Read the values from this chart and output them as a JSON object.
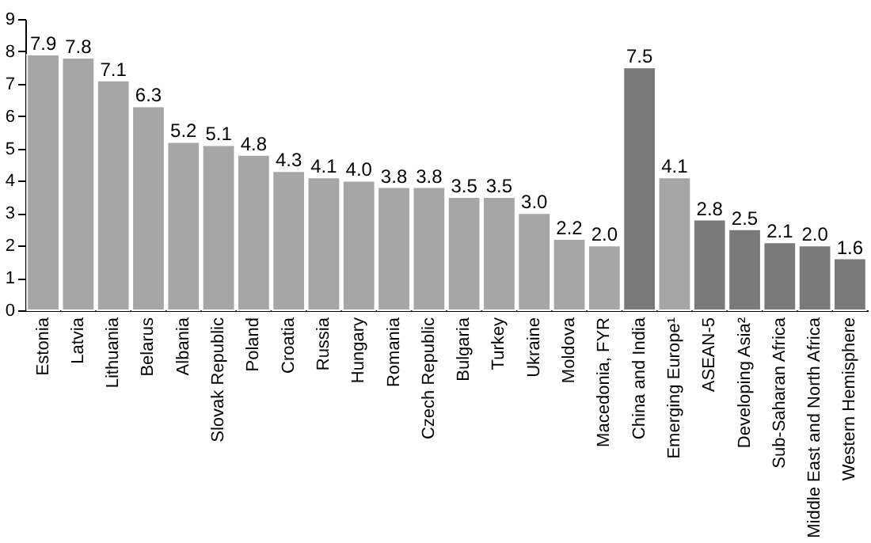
{
  "chart_data": {
    "type": "bar",
    "categories": [
      "Estonia",
      "Latvia",
      "Lithuania",
      "Belarus",
      "Albania",
      "Slovak Republic",
      "Poland",
      "Croatia",
      "Russia",
      "Hungary",
      "Romania",
      "Czech Republic",
      "Bulgaria",
      "Turkey",
      "Ukraine",
      "Moldova",
      "Macedonia, FYR",
      "China and India",
      "Emerging Europe¹",
      "ASEAN-5",
      "Developing Asia²",
      "Sub-Saharan Africa",
      "Middle East and North Africa",
      "Western Hemisphere"
    ],
    "values": [
      7.9,
      7.8,
      7.1,
      6.3,
      5.2,
      5.1,
      4.8,
      4.3,
      4.1,
      4.0,
      3.8,
      3.8,
      3.5,
      3.5,
      3.0,
      2.2,
      2.0,
      7.5,
      4.1,
      2.8,
      2.5,
      2.1,
      2.0,
      1.6
    ],
    "colors": [
      "#a6a6a6",
      "#a6a6a6",
      "#a6a6a6",
      "#a6a6a6",
      "#a6a6a6",
      "#a6a6a6",
      "#a6a6a6",
      "#a6a6a6",
      "#a6a6a6",
      "#a6a6a6",
      "#a6a6a6",
      "#a6a6a6",
      "#a6a6a6",
      "#a6a6a6",
      "#a6a6a6",
      "#a6a6a6",
      "#a6a6a6",
      "#7a7a7a",
      "#a6a6a6",
      "#7a7a7a",
      "#7a7a7a",
      "#7a7a7a",
      "#7a7a7a",
      "#7a7a7a"
    ],
    "ylim": [
      0,
      9
    ],
    "yticks": [
      0,
      1,
      2,
      3,
      4,
      5,
      6,
      7,
      8,
      9
    ],
    "value_labels": [
      "7.9",
      "7.8",
      "7.1",
      "6.3",
      "5.2",
      "5.1",
      "4.8",
      "4.3",
      "4.1",
      "4.0",
      "3.8",
      "3.8",
      "3.5",
      "3.5",
      "3.0",
      "2.2",
      "2.0",
      "7.5",
      "4.1",
      "2.8",
      "2.5",
      "2.1",
      "2.0",
      "1.6"
    ],
    "grid": false
  }
}
